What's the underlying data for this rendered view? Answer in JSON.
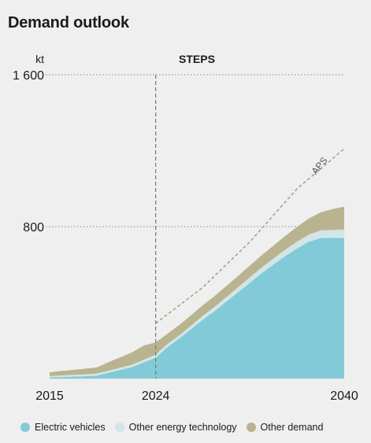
{
  "title": "Demand outlook",
  "chart_data": {
    "type": "area",
    "title": "Demand outlook",
    "unit": "kt",
    "scenario_label": "STEPS",
    "x": [
      2015,
      2016,
      2017,
      2018,
      2019,
      2020,
      2021,
      2022,
      2023,
      2024,
      2025,
      2026,
      2027,
      2028,
      2029,
      2030,
      2031,
      2032,
      2033,
      2034,
      2035,
      2036,
      2037,
      2038,
      2039,
      2040
    ],
    "x_tick_labels": [
      "2015",
      "2024",
      "2040"
    ],
    "xlim": [
      2015,
      2040
    ],
    "ylim": [
      0,
      1600
    ],
    "y_ticks": [
      {
        "value": 800,
        "label": "800"
      },
      {
        "value": 1600,
        "label": "1 600"
      }
    ],
    "divider_year": 2024,
    "series": [
      {
        "name": "Electric vehicles",
        "color": "#82cad8",
        "values": [
          5,
          8,
          10,
          12,
          15,
          30,
          45,
          60,
          85,
          110,
          165,
          210,
          260,
          310,
          355,
          405,
          455,
          505,
          555,
          600,
          645,
          685,
          720,
          740,
          740,
          740
        ]
      },
      {
        "name": "Other energy technology",
        "color": "#d2e5e8",
        "values": [
          7,
          8,
          9,
          10,
          11,
          11,
          12,
          13,
          14,
          15,
          16,
          17,
          18,
          20,
          22,
          24,
          26,
          28,
          30,
          32,
          34,
          36,
          38,
          40,
          42,
          45
        ]
      },
      {
        "name": "Other demand",
        "color": "#b9b48f",
        "values": [
          20,
          24,
          26,
          30,
          32,
          45,
          55,
          65,
          75,
          65,
          55,
          55,
          55,
          56,
          57,
          58,
          60,
          62,
          65,
          68,
          72,
          78,
          85,
          95,
          110,
          120
        ]
      }
    ],
    "aps": {
      "label": "APS",
      "x": [
        2024,
        2028,
        2032,
        2036,
        2040
      ],
      "values": [
        290,
        480,
        720,
        1000,
        1210
      ]
    },
    "legend_position": "bottom",
    "grid": true
  },
  "colors": {
    "background": "#efefef",
    "electric_vehicles": "#82cad8",
    "other_energy_technology": "#d2e5e8",
    "other_demand": "#b9b48f",
    "gridline": "#8a8a8a",
    "aps_line": "#a39f7e"
  }
}
